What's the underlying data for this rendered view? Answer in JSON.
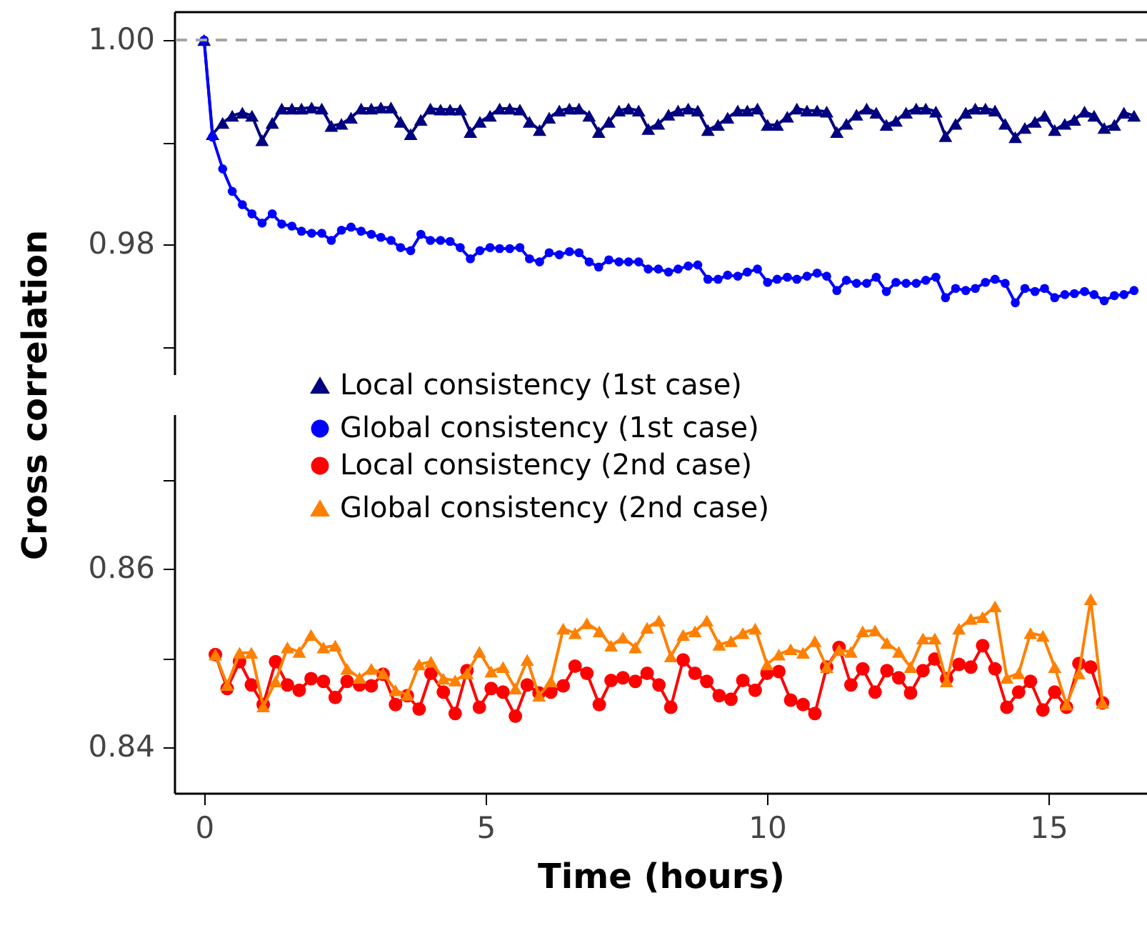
{
  "chart_data": [
    {
      "type": "line",
      "ylabel": "Cross correlation",
      "xlim": [
        -0.53,
        16.75
      ],
      "ylim": [
        0.9673,
        1.0028
      ],
      "xticks": [
        0,
        5,
        10,
        15
      ],
      "yticks": [
        {
          "value": 1,
          "label": "1.00"
        },
        {
          "value": 0.99,
          "label": null
        },
        0.98,
        {
          "value": 0.97,
          "label": null
        }
      ],
      "tick_labels": "y",
      "legend": "bottom",
      "ref_lines": [
        {
          "axis": "y",
          "value": 1,
          "color": "#a6a6a6",
          "line_style": "dashed"
        }
      ],
      "x": [
        0,
        0.15,
        0.33,
        0.5,
        0.68,
        0.85,
        1.03,
        1.21,
        1.38,
        1.56,
        1.73,
        1.91,
        2.09,
        2.26,
        2.44,
        2.61,
        2.79,
        2.97,
        3.14,
        3.32,
        3.49,
        3.67,
        3.85,
        4.02,
        4.2,
        4.37,
        4.55,
        4.73,
        4.9,
        5.08,
        5.25,
        5.43,
        5.61,
        5.78,
        5.96,
        6.13,
        6.31,
        6.49,
        6.66,
        6.84,
        7.01,
        7.19,
        7.37,
        7.54,
        7.72,
        7.89,
        8.07,
        8.25,
        8.42,
        8.6,
        8.77,
        8.95,
        9.13,
        9.3,
        9.48,
        9.65,
        9.83,
        10.01,
        10.18,
        10.36,
        10.53,
        10.71,
        10.89,
        11.06,
        11.24,
        11.41,
        11.59,
        11.77,
        11.94,
        12.12,
        12.29,
        12.47,
        12.65,
        12.82,
        13.0,
        13.17,
        13.35,
        13.53,
        13.7,
        13.88,
        14.05,
        14.23,
        14.41,
        14.58,
        14.76,
        14.93,
        15.11,
        15.29,
        15.46,
        15.64,
        15.81,
        15.99,
        16.17,
        16.34,
        16.52
      ],
      "series": [
        {
          "name": "Local consistency   (1st case)",
          "color": "#000080",
          "marker": "triangle",
          "line_style": "solid",
          "values": [
            1.0,
            0.9908,
            0.9919,
            0.9926,
            0.9929,
            0.9926,
            0.9902,
            0.9919,
            0.9933,
            0.9933,
            0.9933,
            0.9934,
            0.9933,
            0.9916,
            0.9918,
            0.9924,
            0.9933,
            0.9933,
            0.9934,
            0.9934,
            0.992,
            0.9908,
            0.9922,
            0.9933,
            0.9932,
            0.9932,
            0.9932,
            0.991,
            0.992,
            0.9926,
            0.9933,
            0.9933,
            0.9932,
            0.992,
            0.9912,
            0.9924,
            0.9931,
            0.9933,
            0.9933,
            0.9926,
            0.991,
            0.992,
            0.9931,
            0.9933,
            0.9931,
            0.9913,
            0.9918,
            0.9927,
            0.9931,
            0.9933,
            0.9931,
            0.9912,
            0.9917,
            0.9924,
            0.9931,
            0.9931,
            0.9933,
            0.9917,
            0.9917,
            0.9925,
            0.9933,
            0.9931,
            0.9931,
            0.993,
            0.991,
            0.9918,
            0.9927,
            0.9933,
            0.9929,
            0.9917,
            0.9921,
            0.9929,
            0.9933,
            0.9933,
            0.993,
            0.9906,
            0.9918,
            0.9929,
            0.9933,
            0.9933,
            0.9931,
            0.9918,
            0.9905,
            0.9914,
            0.992,
            0.9926,
            0.9912,
            0.9918,
            0.9922,
            0.993,
            0.9926,
            0.9914,
            0.9917,
            0.9929,
            0.9926
          ]
        },
        {
          "name": "Global consistency (1st case)",
          "color": "#0000ff",
          "marker": "circle",
          "line_style": "solid",
          "values": [
            1.0,
            0.9905,
            0.9874,
            0.9852,
            0.9839,
            0.983,
            0.9821,
            0.983,
            0.982,
            0.9818,
            0.9813,
            0.9811,
            0.9811,
            0.9804,
            0.9814,
            0.9817,
            0.9813,
            0.981,
            0.9807,
            0.9804,
            0.9797,
            0.9794,
            0.981,
            0.9804,
            0.9804,
            0.9803,
            0.9797,
            0.9786,
            0.9794,
            0.9797,
            0.9796,
            0.9796,
            0.9797,
            0.9786,
            0.9783,
            0.9792,
            0.979,
            0.9793,
            0.9792,
            0.9783,
            0.9778,
            0.9785,
            0.9783,
            0.9783,
            0.9783,
            0.9776,
            0.9776,
            0.9773,
            0.9776,
            0.9779,
            0.978,
            0.9766,
            0.9766,
            0.977,
            0.9769,
            0.9773,
            0.9776,
            0.9763,
            0.9766,
            0.9768,
            0.9766,
            0.9769,
            0.9772,
            0.9769,
            0.9755,
            0.9765,
            0.9762,
            0.9762,
            0.9768,
            0.9754,
            0.9763,
            0.9762,
            0.9762,
            0.9765,
            0.9768,
            0.9748,
            0.9757,
            0.9755,
            0.9757,
            0.9763,
            0.9766,
            0.9762,
            0.9743,
            0.9757,
            0.9754,
            0.9757,
            0.9748,
            0.9751,
            0.9752,
            0.9754,
            0.9751,
            0.9745,
            0.975,
            0.9751,
            0.9755
          ]
        }
      ]
    },
    {
      "type": "line",
      "xlabel": "Time (hours)",
      "legend": "top",
      "xlim": [
        -0.53,
        16.75
      ],
      "ylim": [
        0.8349,
        0.8773
      ],
      "xticks": [
        0,
        5,
        10,
        15
      ],
      "yticks": [
        {
          "value": 0.87,
          "label": null
        },
        0.86,
        {
          "value": 0.85,
          "label": null
        },
        0.84
      ],
      "x": [
        0.2,
        0.41,
        0.63,
        0.84,
        1.05,
        1.27,
        1.48,
        1.69,
        1.9,
        2.12,
        2.33,
        2.54,
        2.76,
        2.97,
        3.18,
        3.4,
        3.61,
        3.82,
        4.03,
        4.25,
        4.46,
        4.67,
        4.89,
        5.1,
        5.31,
        5.53,
        5.74,
        5.95,
        6.16,
        6.38,
        6.59,
        6.8,
        7.02,
        7.23,
        7.44,
        7.66,
        7.87,
        8.08,
        8.29,
        8.51,
        8.72,
        8.93,
        9.15,
        9.36,
        9.57,
        9.79,
        10.0,
        10.21,
        10.42,
        10.64,
        10.85,
        11.06,
        11.28,
        11.49,
        11.7,
        11.92,
        12.13,
        12.34,
        12.55,
        12.77,
        12.98,
        13.19,
        13.41,
        13.62,
        13.83,
        14.05,
        14.26,
        14.47,
        14.68,
        14.9,
        15.11,
        15.32,
        15.54,
        15.75,
        15.96
      ],
      "series": [
        {
          "name": "Local consistency   (2nd case)",
          "color": "#ff0000",
          "marker": "circle",
          "line_style": "solid",
          "values": [
            0.8504,
            0.8466,
            0.8496,
            0.847,
            0.8448,
            0.8496,
            0.847,
            0.8464,
            0.8477,
            0.8474,
            0.8456,
            0.8474,
            0.847,
            0.8469,
            0.8482,
            0.8448,
            0.8458,
            0.8443,
            0.8483,
            0.8462,
            0.8438,
            0.8486,
            0.8445,
            0.8466,
            0.8462,
            0.8435,
            0.847,
            0.8461,
            0.8462,
            0.8469,
            0.8491,
            0.8483,
            0.8448,
            0.8475,
            0.8478,
            0.8474,
            0.8483,
            0.847,
            0.8445,
            0.8498,
            0.8483,
            0.8474,
            0.8458,
            0.8454,
            0.8475,
            0.8464,
            0.8483,
            0.8485,
            0.8453,
            0.8448,
            0.8438,
            0.849,
            0.8512,
            0.847,
            0.8488,
            0.8462,
            0.8486,
            0.8478,
            0.8461,
            0.8486,
            0.8499,
            0.8477,
            0.8493,
            0.849,
            0.8514,
            0.8488,
            0.8445,
            0.8462,
            0.8474,
            0.8442,
            0.8462,
            0.8445,
            0.8494,
            0.849,
            0.845
          ]
        },
        {
          "name": "Global consistency (2nd case)",
          "color": "#ff8000",
          "marker": "triangle",
          "line_style": "solid",
          "values": [
            0.8504,
            0.847,
            0.8506,
            0.8506,
            0.8446,
            0.8474,
            0.8512,
            0.8507,
            0.8526,
            0.8512,
            0.8514,
            0.8488,
            0.8478,
            0.8488,
            0.8483,
            0.8464,
            0.8459,
            0.8493,
            0.8496,
            0.8477,
            0.8475,
            0.8483,
            0.8507,
            0.8485,
            0.849,
            0.8466,
            0.8498,
            0.8458,
            0.8474,
            0.8533,
            0.8528,
            0.8539,
            0.853,
            0.8514,
            0.8523,
            0.8512,
            0.8534,
            0.8542,
            0.8502,
            0.8526,
            0.853,
            0.8542,
            0.8515,
            0.8519,
            0.8528,
            0.8533,
            0.8493,
            0.8504,
            0.851,
            0.8506,
            0.8519,
            0.849,
            0.8509,
            0.8507,
            0.853,
            0.8531,
            0.8517,
            0.8507,
            0.849,
            0.8522,
            0.8522,
            0.8474,
            0.8533,
            0.8544,
            0.8546,
            0.8558,
            0.8478,
            0.8483,
            0.8528,
            0.8525,
            0.849,
            0.8448,
            0.8483,
            0.8566,
            0.845
          ]
        }
      ]
    }
  ]
}
